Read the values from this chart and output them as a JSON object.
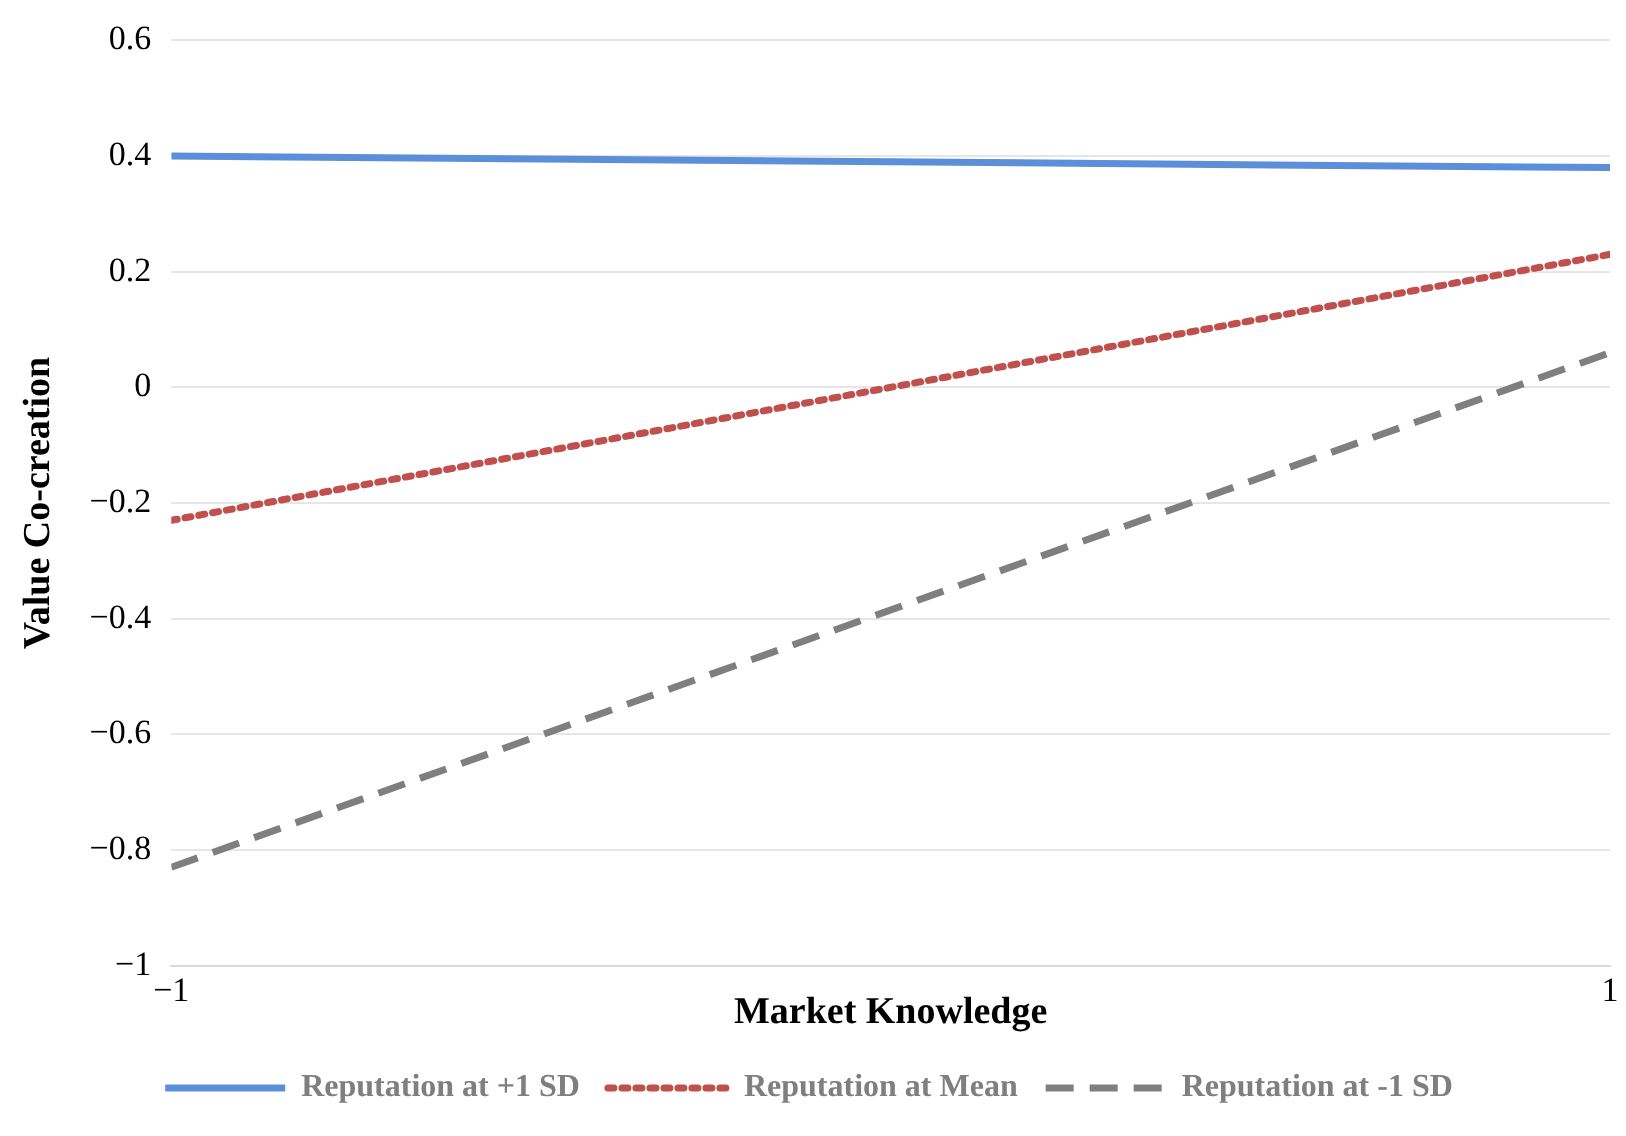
{
  "chart_data": {
    "type": "line",
    "xlabel": "Market Knowledge",
    "ylabel": "Value Co-creation",
    "x": [
      -1,
      1
    ],
    "series": [
      {
        "name": "Reputation at +1 SD",
        "color": "#5b8fd9",
        "values": [
          0.4,
          0.38
        ],
        "line_style": "solid"
      },
      {
        "name": "Reputation at Mean",
        "color": "#c0504d",
        "values": [
          -0.23,
          0.23
        ],
        "line_style": "dotted"
      },
      {
        "name": "Reputation at -1 SD",
        "color": "#7f7f7f",
        "values": [
          -0.83,
          0.06
        ],
        "line_style": "dashed"
      }
    ],
    "xlim": [
      -1,
      1
    ],
    "xticks": [
      {
        "value": -1,
        "label": "−1"
      },
      1
    ],
    "ylim": [
      -1,
      0.6
    ],
    "yticks": [
      {
        "value": -1,
        "label": "−1"
      },
      {
        "value": -0.8,
        "label": "−0.8"
      },
      {
        "value": -0.6,
        "label": "−0.6"
      },
      {
        "value": -0.4,
        "label": "−0.4"
      },
      {
        "value": -0.2,
        "label": "−0.2"
      },
      0,
      0.2,
      0.4,
      0.6
    ],
    "grid": "y",
    "legend": "bottom",
    "marker": "none"
  }
}
